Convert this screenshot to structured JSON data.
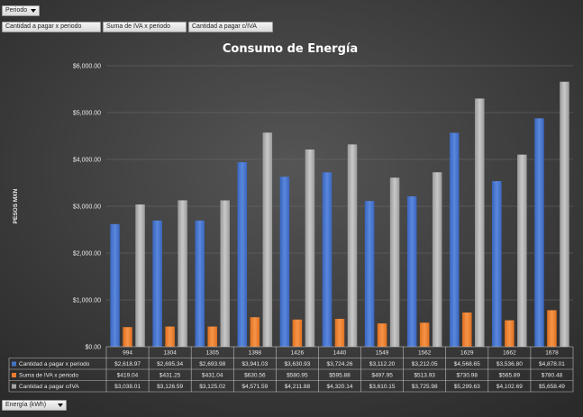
{
  "pivot": {
    "filter_label": "Periodo",
    "row_field_label": "Energía (kWh)",
    "value_fields": [
      "Cantidad a pagar x periodo",
      "Suma de IVA x periodo",
      "Cantidad a pagar c/IVA"
    ]
  },
  "chart_data": {
    "type": "bar",
    "title": "Consumo de Energía",
    "xlabel": "",
    "ylabel": "PESOS MXN",
    "ylim": [
      0,
      6000
    ],
    "ytick_step": 1000,
    "ytick_labels": [
      "$0.00",
      "$1,000.00",
      "$2,000.00",
      "$3,000.00",
      "$4,000.00",
      "$5,000.00",
      "$6,000.00"
    ],
    "grid": true,
    "legend": "data-table",
    "categories": [
      "994",
      "1304",
      "1305",
      "1398",
      "1426",
      "1440",
      "1549",
      "1562",
      "1629",
      "1662",
      "1678"
    ],
    "series": [
      {
        "name": "Cantidad a pagar x periodo",
        "color": "#4472c4",
        "values": [
          2618.97,
          2695.34,
          2693.98,
          3941.03,
          3630.93,
          3724.26,
          3112.2,
          3212.05,
          4568.65,
          3536.8,
          4878.01
        ],
        "labels": [
          "$2,618.97",
          "$2,695.34",
          "$2,693.98",
          "$3,941.03",
          "$3,630.93",
          "$3,724.26",
          "$3,112.20",
          "$3,212.05",
          "$4,568.65",
          "$3,536.80",
          "$4,878.01"
        ]
      },
      {
        "name": "Suma de IVA x periodo",
        "color": "#ed7d31",
        "values": [
          419.04,
          431.25,
          431.04,
          630.56,
          580.95,
          595.88,
          497.95,
          513.93,
          730.98,
          565.89,
          780.48
        ],
        "labels": [
          "$419.04",
          "$431.25",
          "$431.04",
          "$630.56",
          "$580.95",
          "$595.88",
          "$497.95",
          "$513.93",
          "$730.98",
          "$565.89",
          "$780.48"
        ]
      },
      {
        "name": "Cantidad a pagar c/IVA",
        "color": "#a5a5a5",
        "values": [
          3038.01,
          3126.59,
          3125.02,
          4571.59,
          4211.88,
          4320.14,
          3610.15,
          3725.98,
          5299.63,
          4102.69,
          5658.49
        ],
        "labels": [
          "$3,038.01",
          "$3,126.59",
          "$3,125.02",
          "$4,571.59",
          "$4,211.88",
          "$4,320.14",
          "$3,610.15",
          "$3,725.98",
          "$5,299.63",
          "$4,102.69",
          "$5,658.49"
        ]
      }
    ]
  }
}
